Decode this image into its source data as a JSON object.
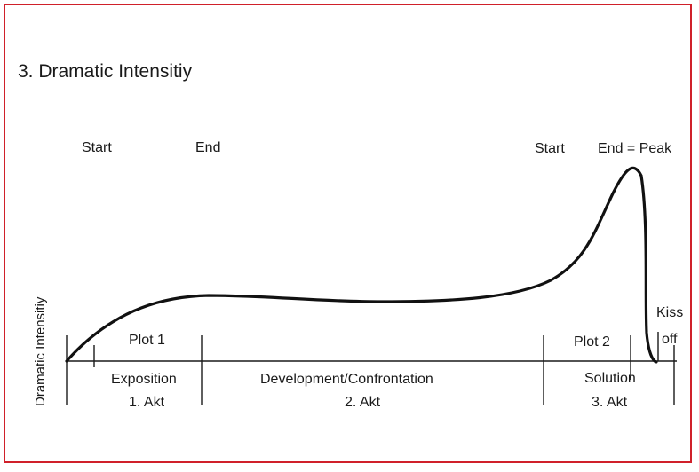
{
  "title": "3. Dramatic Intensitiy",
  "y_axis_label": "Dramatic Intensitiy",
  "markers": {
    "start_1": "Start",
    "end_1": "End",
    "start_2": "Start",
    "end_peak": "End = Peak"
  },
  "plots": {
    "plot_1": "Plot 1",
    "plot_2": "Plot 2",
    "kiss_line_1": "Kiss",
    "kiss_line_2": "off"
  },
  "sections": {
    "exposition": "Exposition",
    "act_1": "1. Akt",
    "development": "Development/Confrontation",
    "act_2": "2. Akt",
    "solution": "Solution",
    "act_3": "3. Akt"
  },
  "colors": {
    "frame": "#d0202a",
    "ink": "#1a1a1a"
  }
}
